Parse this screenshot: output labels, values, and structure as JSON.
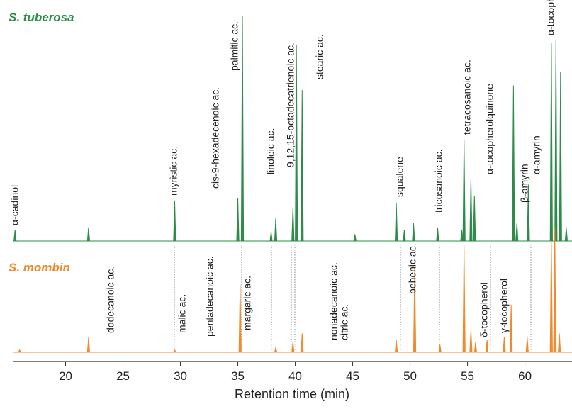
{
  "chart_data": {
    "type": "chromatogram",
    "xlabel": "Retention time (min)",
    "xlim": [
      15.4,
      64.1
    ],
    "xticks": [
      20,
      25,
      30,
      35,
      40,
      45,
      50,
      55,
      60
    ],
    "series": [
      {
        "name": "S. tuberosa",
        "color": "#2e8b4a",
        "x": [
          15.6,
          22.0,
          29.5,
          35.0,
          35.4,
          37.9,
          38.3,
          39.8,
          40.1,
          40.6,
          45.2,
          48.8,
          49.5,
          50.3,
          52.4,
          54.5,
          54.7,
          55.3,
          55.6,
          59.0,
          59.3,
          60.3,
          62.3,
          62.7,
          63.1,
          63.6
        ],
        "values": [
          5,
          6,
          18,
          19,
          100,
          4,
          10,
          15,
          87,
          67,
          3,
          17,
          5,
          8,
          6,
          5,
          45,
          28,
          20,
          69,
          8,
          25,
          88,
          89,
          75,
          6
        ],
        "labels": [
          "α-cadinol",
          "myristic ac.",
          "cis-9-hexadecenoic ac.",
          "palmitic ac.",
          "linoleic ac.",
          "9,12,15-octadecatrienoic ac.",
          "stearic ac.",
          "squalene",
          "tricosanoic ac.",
          "tetracosanoic ac.",
          "α-tocopherolquinone",
          "β-amyrin",
          "α-amyrin",
          "α-tocopherol"
        ]
      },
      {
        "name": "S. mombin",
        "color": "#f08a2c",
        "x": [
          16.0,
          22.0,
          29.5,
          35.2,
          38.3,
          39.8,
          40.6,
          48.8,
          50.4,
          52.6,
          54.7,
          55.3,
          55.7,
          56.7,
          58.2,
          58.8,
          60.2,
          62.3,
          62.6,
          63.0
        ],
        "values": [
          2,
          12,
          2,
          54,
          4,
          8,
          15,
          10,
          68,
          6,
          85,
          18,
          8,
          10,
          12,
          38,
          12,
          89,
          100,
          15
        ],
        "labels": [
          "dodecanoic ac.",
          "malic ac.",
          "pentadecanoic ac.",
          "margaric ac.",
          "nonadecanoic ac.",
          "citric ac.",
          "behenic ac.",
          "δ-tocopherol",
          "γ-tocopherol"
        ]
      }
    ]
  }
}
